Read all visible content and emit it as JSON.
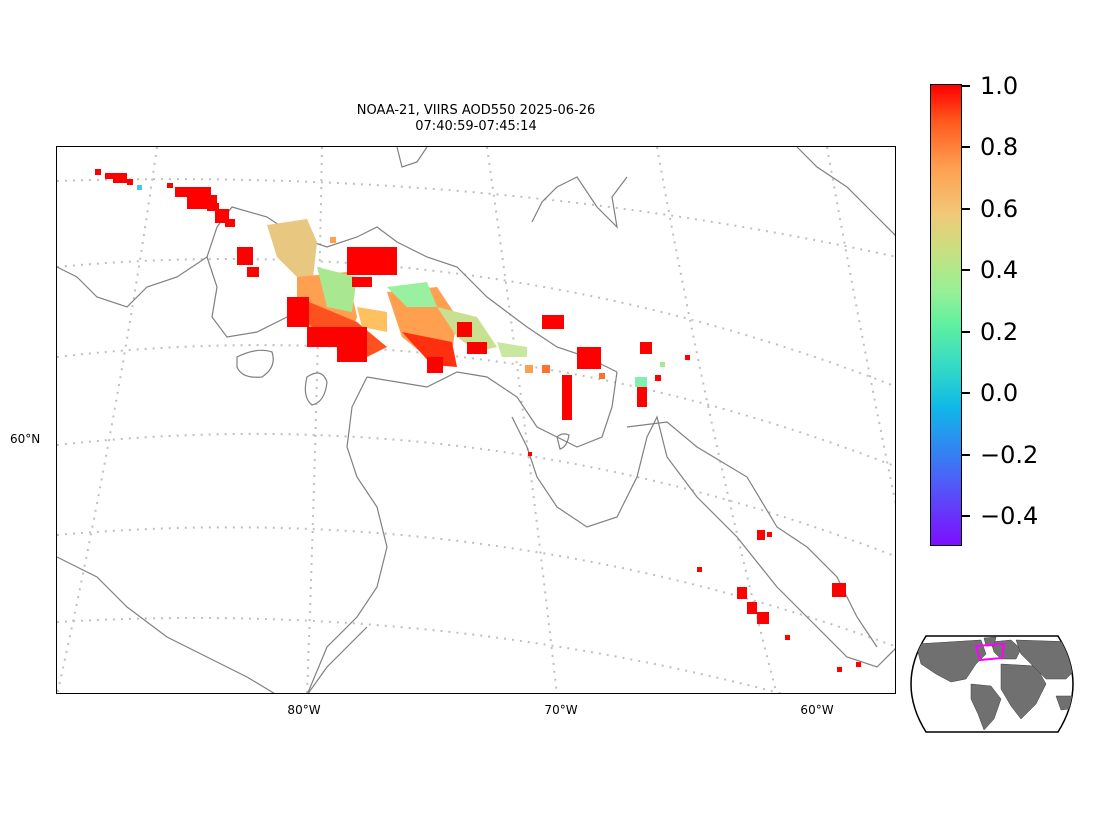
{
  "title": {
    "line1": "NOAA-21, VIIRS AOD550 2025-06-26",
    "line2": "07:40:59-07:45:14"
  },
  "axes": {
    "lon_labels": [
      "80°W",
      "70°W",
      "60°W"
    ],
    "lat_labels": [
      "60°N"
    ]
  },
  "colorbar": {
    "colormap": "rainbow",
    "vmin": -0.5,
    "vmax": 1.0,
    "ticks": [
      "1.0",
      "0.8",
      "0.6",
      "0.4",
      "0.2",
      "0.0",
      "−0.2",
      "−0.4"
    ]
  },
  "colors": {
    "coastline": "#808080",
    "graticule": "#bfbfbf",
    "inset_land": "#707070",
    "inset_box": "#ff00ff",
    "high_aod": "#ff0000"
  },
  "inset": {
    "projection": "Robinson",
    "highlight": "swath outline"
  }
}
